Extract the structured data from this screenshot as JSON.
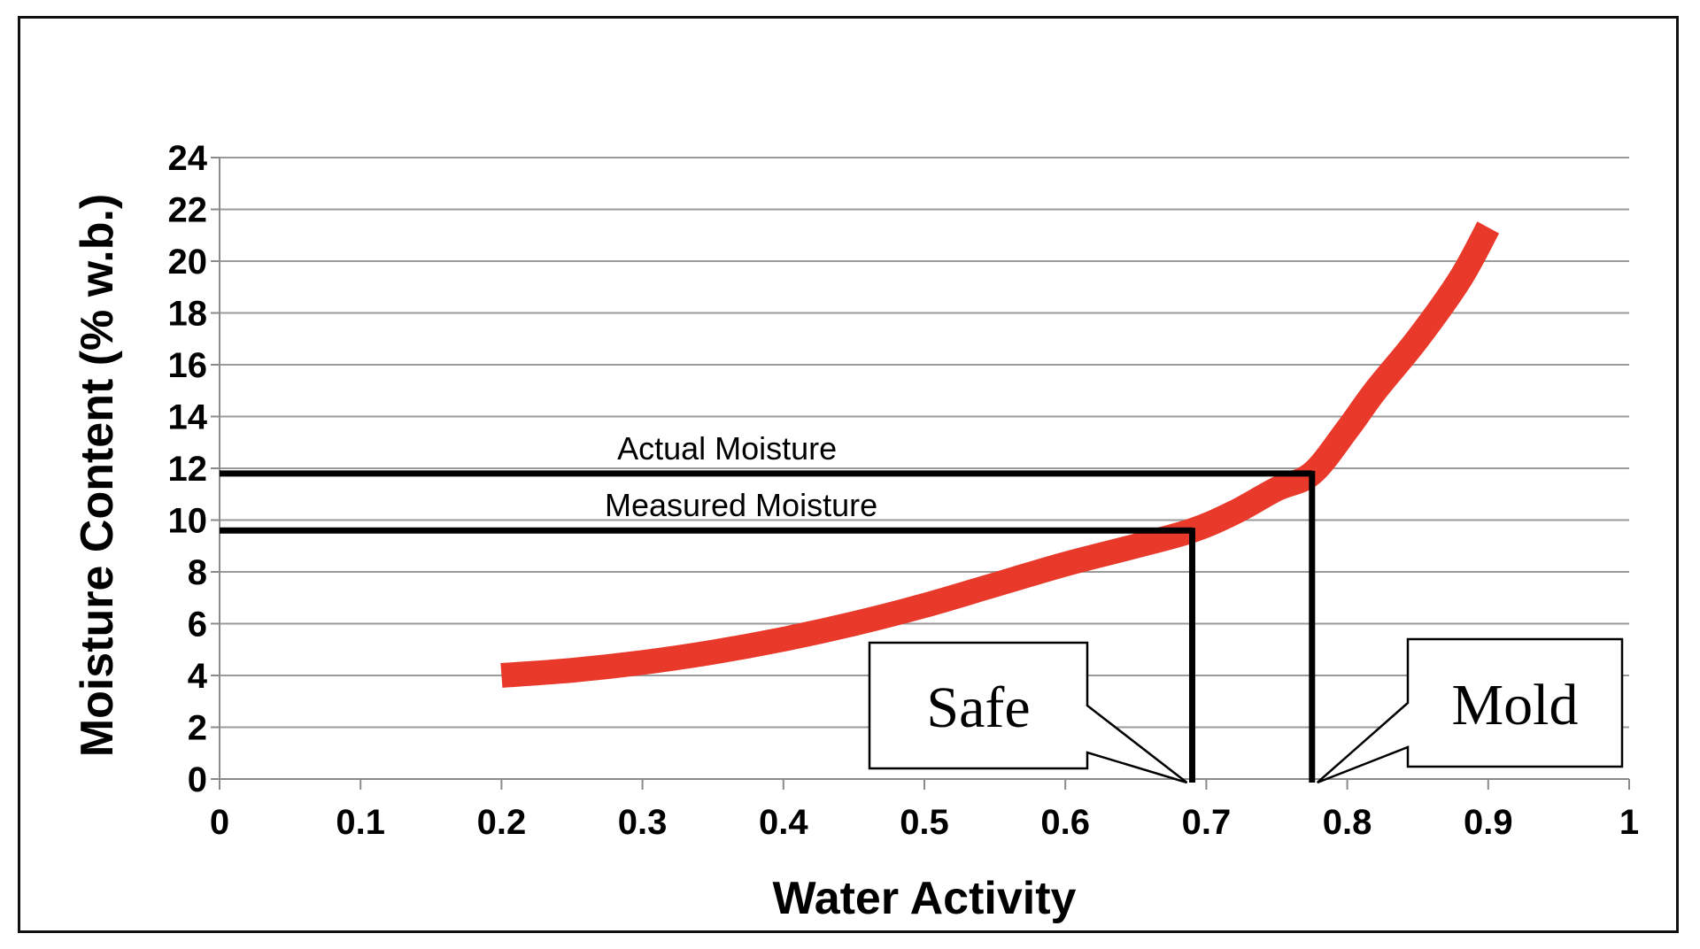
{
  "chart_data": {
    "type": "line",
    "title": "",
    "xlabel": "Water Activity",
    "ylabel": "Moisture Content (% w.b.)",
    "xlim": [
      0,
      1
    ],
    "ylim": [
      0,
      24
    ],
    "x_ticks": [
      "0",
      "0.1",
      "0.2",
      "0.3",
      "0.4",
      "0.5",
      "0.6",
      "0.7",
      "0.8",
      "0.9",
      "1"
    ],
    "y_ticks": [
      "0",
      "2",
      "4",
      "6",
      "8",
      "10",
      "12",
      "14",
      "16",
      "18",
      "20",
      "22",
      "24"
    ],
    "grid": "horizontal",
    "legend": "none",
    "series": [
      {
        "color": "#e8392b",
        "x": [
          0.2,
          0.25,
          0.3,
          0.35,
          0.4,
          0.45,
          0.5,
          0.55,
          0.6,
          0.65,
          0.69,
          0.72,
          0.75,
          0.775,
          0.8,
          0.82,
          0.85,
          0.88,
          0.9
        ],
        "y": [
          4.0,
          4.2,
          4.5,
          4.9,
          5.4,
          6.0,
          6.7,
          7.5,
          8.3,
          9.0,
          9.6,
          10.3,
          11.2,
          11.8,
          13.5,
          15.0,
          17.0,
          19.3,
          21.3
        ]
      }
    ],
    "annotations": [
      {
        "label": "Actual Moisture",
        "y": 11.8,
        "x_end": 0.775
      },
      {
        "label": "Measured Moisture",
        "y": 9.6,
        "x_end": 0.69
      }
    ],
    "callouts": [
      {
        "label": "Safe",
        "x": 0.69
      },
      {
        "label": "Mold",
        "x": 0.775
      }
    ]
  }
}
